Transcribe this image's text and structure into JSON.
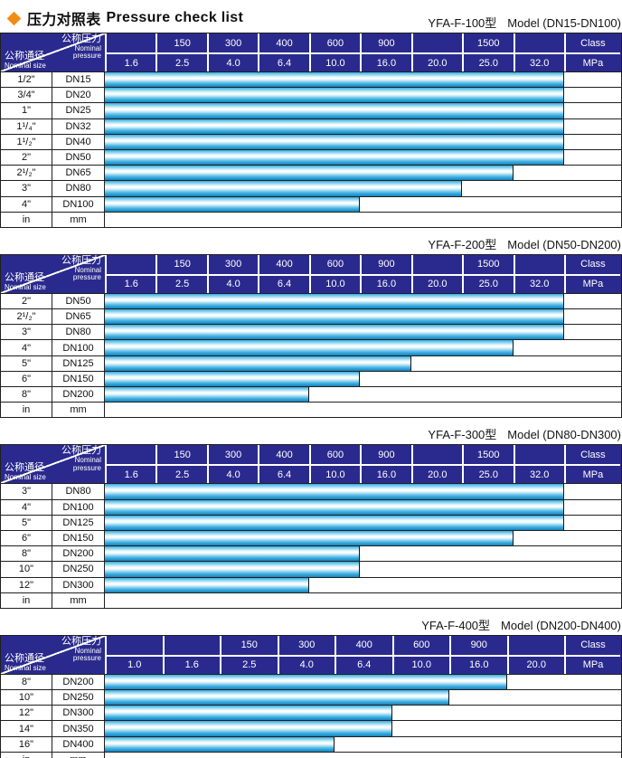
{
  "page": {
    "title_zh": "压力对照表",
    "title_en": "Pressure check list"
  },
  "colors": {
    "header_navy": "#2a2a8e",
    "bar_cyan_top": "#3ba9db",
    "bar_highlight": "#ffffff",
    "bar_cyan_bottom": "#1a84ba",
    "diamond_orange": "#f18c14",
    "border_dark": "#1f1f1f"
  },
  "header_labels": {
    "nominal_pressure_zh": "公称压力",
    "nominal_pressure_en1": "Nominal",
    "nominal_pressure_en2": "pressure",
    "nominal_size_zh": "公称通径",
    "nominal_size_en": "Nominal size",
    "class_unit": "Class",
    "mpa_unit": "MPa"
  },
  "tables": [
    {
      "subtitle_model": "YFA-F-100型",
      "subtitle_range": "Model (DN15-DN100)",
      "class_row": [
        "",
        "150",
        "300",
        "400",
        "600",
        "900",
        "",
        "1500",
        ""
      ],
      "mpa_row": [
        "1.6",
        "2.5",
        "4.0",
        "6.4",
        "10.0",
        "16.0",
        "20.0",
        "25.0",
        "32.0"
      ],
      "rows": [
        {
          "inch": "1/2\"",
          "dn": "DN15",
          "max_mpa": "32.0"
        },
        {
          "inch": "3/4\"",
          "dn": "DN20",
          "max_mpa": "32.0"
        },
        {
          "inch": "1\"",
          "dn": "DN25",
          "max_mpa": "32.0"
        },
        {
          "inch": "1¹/₄\"",
          "dn": "DN32",
          "max_mpa": "32.0"
        },
        {
          "inch": "1¹/₂\"",
          "dn": "DN40",
          "max_mpa": "32.0"
        },
        {
          "inch": "2\"",
          "dn": "DN50",
          "max_mpa": "32.0"
        },
        {
          "inch": "2¹/₂\"",
          "dn": "DN65",
          "max_mpa": "25.0"
        },
        {
          "inch": "3\"",
          "dn": "DN80",
          "max_mpa": "20.0"
        },
        {
          "inch": "4\"",
          "dn": "DN100",
          "max_mpa": "10.0"
        },
        {
          "inch": "in",
          "dn": "mm",
          "max_mpa": ""
        }
      ]
    },
    {
      "subtitle_model": "YFA-F-200型",
      "subtitle_range": "Model (DN50-DN200)",
      "class_row": [
        "",
        "150",
        "300",
        "400",
        "600",
        "900",
        "",
        "1500",
        ""
      ],
      "mpa_row": [
        "1.6",
        "2.5",
        "4.0",
        "6.4",
        "10.0",
        "16.0",
        "20.0",
        "25.0",
        "32.0"
      ],
      "rows": [
        {
          "inch": "2\"",
          "dn": "DN50",
          "max_mpa": "32.0"
        },
        {
          "inch": "2¹/₂\"",
          "dn": "DN65",
          "max_mpa": "32.0"
        },
        {
          "inch": "3\"",
          "dn": "DN80",
          "max_mpa": "32.0"
        },
        {
          "inch": "4\"",
          "dn": "DN100",
          "max_mpa": "25.0"
        },
        {
          "inch": "5\"",
          "dn": "DN125",
          "max_mpa": "16.0"
        },
        {
          "inch": "6\"",
          "dn": "DN150",
          "max_mpa": "10.0"
        },
        {
          "inch": "8\"",
          "dn": "DN200",
          "max_mpa": "6.4"
        },
        {
          "inch": "in",
          "dn": "mm",
          "max_mpa": ""
        }
      ]
    },
    {
      "subtitle_model": "YFA-F-300型",
      "subtitle_range": "Model (DN80-DN300)",
      "class_row": [
        "",
        "150",
        "300",
        "400",
        "600",
        "900",
        "",
        "1500",
        ""
      ],
      "mpa_row": [
        "1.6",
        "2.5",
        "4.0",
        "6.4",
        "10.0",
        "16.0",
        "20.0",
        "25.0",
        "32.0"
      ],
      "rows": [
        {
          "inch": "3\"",
          "dn": "DN80",
          "max_mpa": "32.0"
        },
        {
          "inch": "4\"",
          "dn": "DN100",
          "max_mpa": "32.0"
        },
        {
          "inch": "5\"",
          "dn": "DN125",
          "max_mpa": "32.0"
        },
        {
          "inch": "6\"",
          "dn": "DN150",
          "max_mpa": "25.0"
        },
        {
          "inch": "8\"",
          "dn": "DN200",
          "max_mpa": "10.0"
        },
        {
          "inch": "10\"",
          "dn": "DN250",
          "max_mpa": "10.0"
        },
        {
          "inch": "12\"",
          "dn": "DN300",
          "max_mpa": "6.4"
        },
        {
          "inch": "in",
          "dn": "mm",
          "max_mpa": ""
        }
      ]
    },
    {
      "subtitle_model": "YFA-F-400型",
      "subtitle_range": "Model (DN200-DN400)",
      "class_row": [
        "",
        "",
        "150",
        "300",
        "400",
        "600",
        "900",
        ""
      ],
      "mpa_row": [
        "1.0",
        "1.6",
        "2.5",
        "4.0",
        "6.4",
        "10.0",
        "16.0",
        "20.0"
      ],
      "rows": [
        {
          "inch": "8\"",
          "dn": "DN200",
          "max_mpa": "16.0"
        },
        {
          "inch": "10\"",
          "dn": "DN250",
          "max_mpa": "10.0"
        },
        {
          "inch": "12\"",
          "dn": "DN300",
          "max_mpa": "6.4"
        },
        {
          "inch": "14\"",
          "dn": "DN350",
          "max_mpa": "6.4"
        },
        {
          "inch": "16\"",
          "dn": "DN400",
          "max_mpa": "4.0"
        },
        {
          "inch": "in",
          "dn": "mm",
          "max_mpa": ""
        }
      ]
    }
  ]
}
